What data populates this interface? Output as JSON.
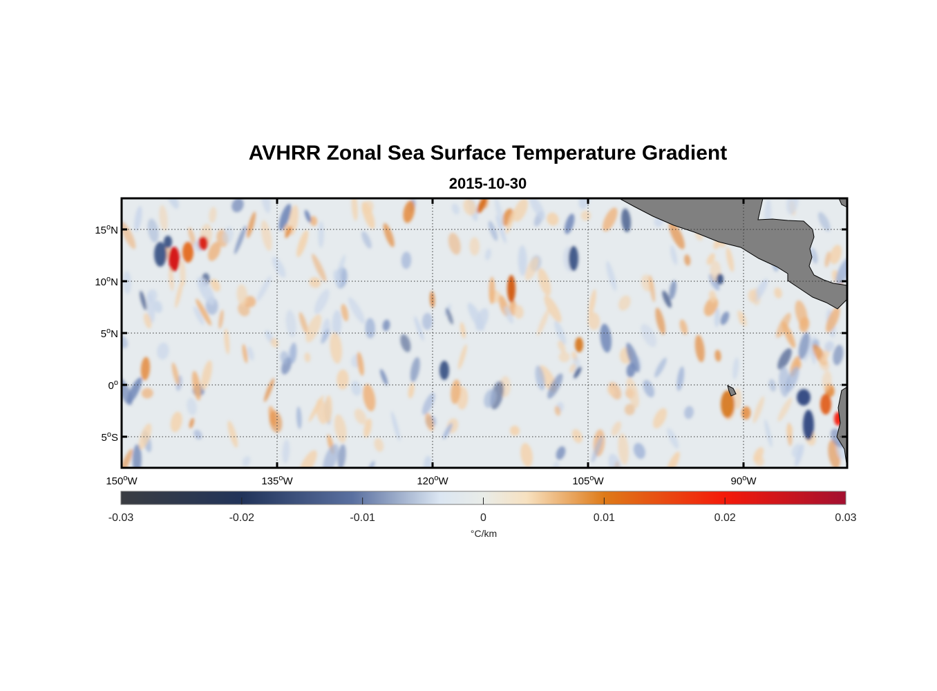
{
  "figure": {
    "title": "AVHRR Zonal Sea Surface Temperature Gradient",
    "subtitle": "2015-10-30"
  },
  "map": {
    "extent": {
      "lon": [
        -150,
        -80
      ],
      "lat": [
        -8,
        18
      ]
    },
    "grid": true,
    "lat_ticks": [
      {
        "value": 15,
        "label": "15°N"
      },
      {
        "value": 10,
        "label": "10°N"
      },
      {
        "value": 5,
        "label": "5°N"
      },
      {
        "value": 0,
        "label": "0°"
      },
      {
        "value": -5,
        "label": "5°S"
      }
    ],
    "lon_ticks": [
      {
        "value": -150,
        "label": "150°W"
      },
      {
        "value": -135,
        "label": "135°W"
      },
      {
        "value": -120,
        "label": "120°W"
      },
      {
        "value": -105,
        "label": "105°W"
      },
      {
        "value": -90,
        "label": "90°W"
      }
    ],
    "land_color": "#808080",
    "ocean_base_color": "#e6ebee"
  },
  "colorbar": {
    "range": [
      -0.03,
      0.03
    ],
    "ticks": [
      "-0.03",
      "-0.02",
      "-0.01",
      "0",
      "0.01",
      "0.02",
      "0.03"
    ],
    "unit": "°C/km",
    "colors": [
      "#3a3d42",
      "#22345a",
      "#5a70a0",
      "#dbe6f2",
      "#e9ece8",
      "#f7e1c0",
      "#de7a18",
      "#f41a0a",
      "#a31030"
    ]
  }
}
